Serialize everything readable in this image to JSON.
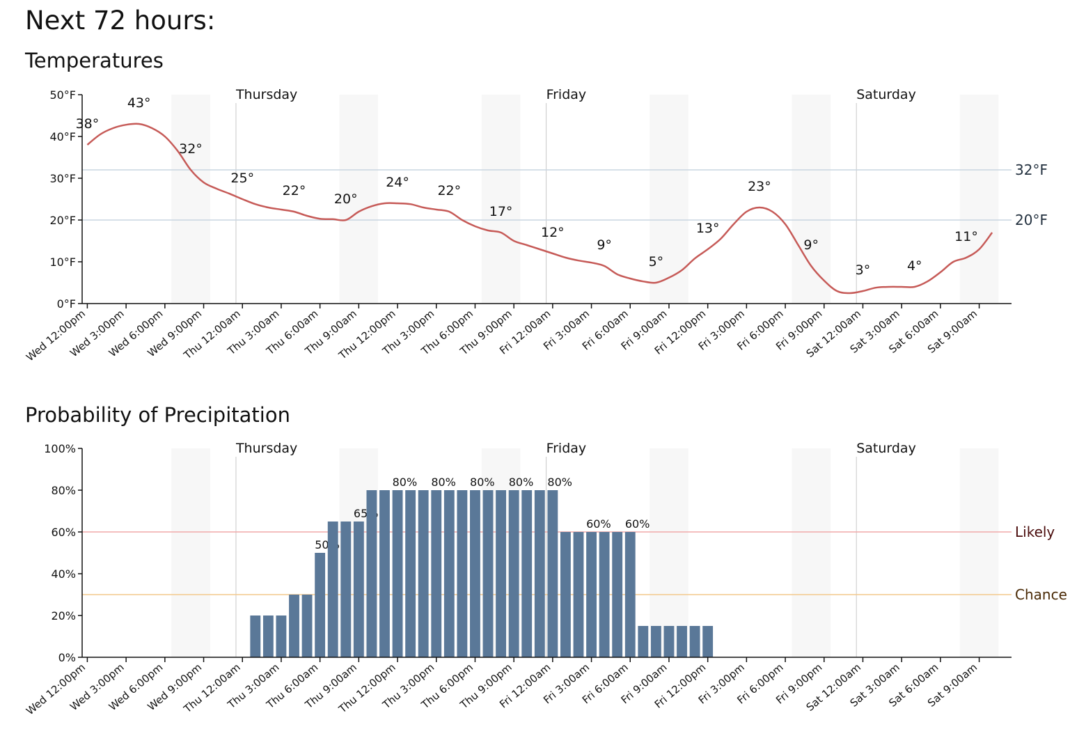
{
  "title": "Next 72 hours:",
  "chart_data": [
    {
      "type": "line",
      "title": "Temperatures",
      "x": [
        0,
        1,
        2,
        3,
        4,
        5,
        6,
        7,
        8,
        9,
        10,
        11,
        12,
        13,
        14,
        15,
        16,
        17,
        18,
        19,
        20,
        21,
        22,
        23,
        24,
        25,
        26,
        27,
        28,
        29,
        30,
        31,
        32,
        33,
        34,
        35,
        36,
        37,
        38,
        39,
        40,
        41,
        42,
        43,
        44,
        45,
        46,
        47,
        48,
        49,
        50,
        51,
        52,
        53,
        54,
        55,
        56,
        57,
        58,
        59,
        60,
        61,
        62,
        63,
        64,
        65,
        66,
        67,
        68,
        69,
        70
      ],
      "values": [
        38,
        40.5,
        42,
        42.8,
        43,
        42,
        40,
        36.5,
        32,
        29,
        27.5,
        26.3,
        25,
        23.8,
        23,
        22.5,
        22,
        21,
        20.3,
        20.2,
        20,
        22,
        23.3,
        24,
        24,
        23.8,
        23,
        22.5,
        22,
        20,
        18.5,
        17.5,
        17,
        15,
        14,
        13,
        12,
        11,
        10.3,
        9.8,
        9,
        7,
        6,
        5.3,
        5,
        6.2,
        8,
        10.8,
        13,
        15.5,
        19,
        22,
        23,
        22,
        19,
        14,
        9,
        5.5,
        3,
        2.5,
        3,
        3.8,
        4,
        4,
        4,
        5.3,
        7.5,
        10,
        11,
        13,
        17
      ],
      "value_labels": [
        "38°",
        null,
        null,
        null,
        "43°",
        null,
        null,
        null,
        "32°",
        null,
        null,
        null,
        "25°",
        null,
        null,
        null,
        "22°",
        null,
        null,
        null,
        "20°",
        null,
        null,
        null,
        "24°",
        null,
        null,
        null,
        "22°",
        null,
        null,
        null,
        "17°",
        null,
        null,
        null,
        "12°",
        null,
        null,
        null,
        "9°",
        null,
        null,
        null,
        "5°",
        null,
        null,
        null,
        "13°",
        null,
        null,
        null,
        "23°",
        null,
        null,
        null,
        "9°",
        null,
        null,
        null,
        "3°",
        null,
        null,
        null,
        "4°",
        null,
        null,
        null,
        "11°",
        null,
        null
      ],
      "color": "#c65a57",
      "xlim": [
        -0.4,
        71.5
      ],
      "xticks": [
        {
          "value": 0,
          "label": "Wed 12:00pm"
        },
        {
          "value": 3,
          "label": "Wed 3:00pm"
        },
        {
          "value": 6,
          "label": "Wed 6:00pm"
        },
        {
          "value": 9,
          "label": "Wed 9:00pm"
        },
        {
          "value": 12,
          "label": "Thu 12:00am"
        },
        {
          "value": 15,
          "label": "Thu 3:00am"
        },
        {
          "value": 18,
          "label": "Thu 6:00am"
        },
        {
          "value": 21,
          "label": "Thu 9:00am"
        },
        {
          "value": 24,
          "label": "Thu 12:00pm"
        },
        {
          "value": 27,
          "label": "Thu 3:00pm"
        },
        {
          "value": 30,
          "label": "Thu 6:00pm"
        },
        {
          "value": 33,
          "label": "Thu 9:00pm"
        },
        {
          "value": 36,
          "label": "Fri 12:00am"
        },
        {
          "value": 39,
          "label": "Fri 3:00am"
        },
        {
          "value": 42,
          "label": "Fri 6:00am"
        },
        {
          "value": 45,
          "label": "Fri 9:00am"
        },
        {
          "value": 48,
          "label": "Fri 12:00pm"
        },
        {
          "value": 51,
          "label": "Fri 3:00pm"
        },
        {
          "value": 54,
          "label": "Fri 6:00pm"
        },
        {
          "value": 57,
          "label": "Fri 9:00pm"
        },
        {
          "value": 60,
          "label": "Sat 12:00am"
        },
        {
          "value": 63,
          "label": "Sat 3:00am"
        },
        {
          "value": 66,
          "label": "Sat 6:00am"
        },
        {
          "value": 69,
          "label": "Sat 9:00am"
        }
      ],
      "ylim": [
        0,
        50
      ],
      "yticks": [
        {
          "value": 0,
          "label": "0°F"
        },
        {
          "value": 10,
          "label": "10°F"
        },
        {
          "value": 20,
          "label": "20°F"
        },
        {
          "value": 30,
          "label": "30°F"
        },
        {
          "value": 40,
          "label": "40°F"
        },
        {
          "value": 50,
          "label": "50°F"
        }
      ],
      "day_markers": [
        {
          "label": "Thursday",
          "x": 11.5
        },
        {
          "label": "Friday",
          "x": 35.5
        },
        {
          "label": "Saturday",
          "x": 59.5
        }
      ],
      "shaded_bands": [
        [
          6.5,
          9.5
        ],
        [
          19.5,
          22.5
        ],
        [
          30.5,
          33.5
        ],
        [
          43.5,
          46.5
        ],
        [
          54.5,
          57.5
        ],
        [
          67.5,
          70.5
        ]
      ],
      "reference_lines": [
        {
          "value": 32,
          "label": "32°F",
          "color": "#c9d5e1",
          "text_color": "#22303e"
        },
        {
          "value": 20,
          "label": "20°F",
          "color": "#c9d5e1",
          "text_color": "#22303e"
        }
      ]
    },
    {
      "type": "bar",
      "title": "Probability of Precipitation",
      "x": [
        13,
        14,
        15,
        16,
        17,
        18,
        19,
        20,
        21,
        22,
        23,
        24,
        25,
        26,
        27,
        28,
        29,
        30,
        31,
        32,
        33,
        34,
        35,
        36,
        37,
        38,
        39,
        40,
        41,
        42,
        43,
        44,
        45,
        46,
        47,
        48
      ],
      "values": [
        20,
        20,
        20,
        30,
        30,
        50,
        65,
        65,
        65,
        80,
        80,
        80,
        80,
        80,
        80,
        80,
        80,
        80,
        80,
        80,
        80,
        80,
        80,
        80,
        60,
        60,
        60,
        60,
        60,
        60,
        15,
        15,
        15,
        15,
        15,
        15
      ],
      "value_labels": [
        null,
        null,
        null,
        null,
        null,
        "50%",
        null,
        null,
        "65%",
        null,
        null,
        "80%",
        null,
        null,
        "80%",
        null,
        null,
        "80%",
        null,
        null,
        "80%",
        null,
        null,
        "80%",
        null,
        null,
        "60%",
        null,
        null,
        "60%",
        null,
        null,
        null,
        null,
        null,
        null
      ],
      "color": "#5a7898",
      "xlim": [
        -0.4,
        71.5
      ],
      "xticks": [
        {
          "value": 0,
          "label": "Wed 12:00pm"
        },
        {
          "value": 3,
          "label": "Wed 3:00pm"
        },
        {
          "value": 6,
          "label": "Wed 6:00pm"
        },
        {
          "value": 9,
          "label": "Wed 9:00pm"
        },
        {
          "value": 12,
          "label": "Thu 12:00am"
        },
        {
          "value": 15,
          "label": "Thu 3:00am"
        },
        {
          "value": 18,
          "label": "Thu 6:00am"
        },
        {
          "value": 21,
          "label": "Thu 9:00am"
        },
        {
          "value": 24,
          "label": "Thu 12:00pm"
        },
        {
          "value": 27,
          "label": "Thu 3:00pm"
        },
        {
          "value": 30,
          "label": "Thu 6:00pm"
        },
        {
          "value": 33,
          "label": "Thu 9:00pm"
        },
        {
          "value": 36,
          "label": "Fri 12:00am"
        },
        {
          "value": 39,
          "label": "Fri 3:00am"
        },
        {
          "value": 42,
          "label": "Fri 6:00am"
        },
        {
          "value": 45,
          "label": "Fri 9:00am"
        },
        {
          "value": 48,
          "label": "Fri 12:00pm"
        },
        {
          "value": 51,
          "label": "Fri 3:00pm"
        },
        {
          "value": 54,
          "label": "Fri 6:00pm"
        },
        {
          "value": 57,
          "label": "Fri 9:00pm"
        },
        {
          "value": 60,
          "label": "Sat 12:00am"
        },
        {
          "value": 63,
          "label": "Sat 3:00am"
        },
        {
          "value": 66,
          "label": "Sat 6:00am"
        },
        {
          "value": 69,
          "label": "Sat 9:00am"
        }
      ],
      "ylim": [
        0,
        100
      ],
      "yticks": [
        {
          "value": 0,
          "label": "0%"
        },
        {
          "value": 20,
          "label": "20%"
        },
        {
          "value": 40,
          "label": "40%"
        },
        {
          "value": 60,
          "label": "60%"
        },
        {
          "value": 80,
          "label": "80%"
        },
        {
          "value": 100,
          "label": "100%"
        }
      ],
      "day_markers": [
        {
          "label": "Thursday",
          "x": 11.5
        },
        {
          "label": "Friday",
          "x": 35.5
        },
        {
          "label": "Saturday",
          "x": 59.5
        }
      ],
      "shaded_bands": [
        [
          6.5,
          9.5
        ],
        [
          19.5,
          22.5
        ],
        [
          30.5,
          33.5
        ],
        [
          43.5,
          46.5
        ],
        [
          54.5,
          57.5
        ],
        [
          67.5,
          70.5
        ]
      ],
      "reference_lines": [
        {
          "value": 60,
          "label": "Likely",
          "color": "#f0a9a9",
          "text_color": "#4a0c0c"
        },
        {
          "value": 30,
          "label": "Chance",
          "color": "#f4c88c",
          "text_color": "#4a2a06"
        }
      ]
    }
  ]
}
